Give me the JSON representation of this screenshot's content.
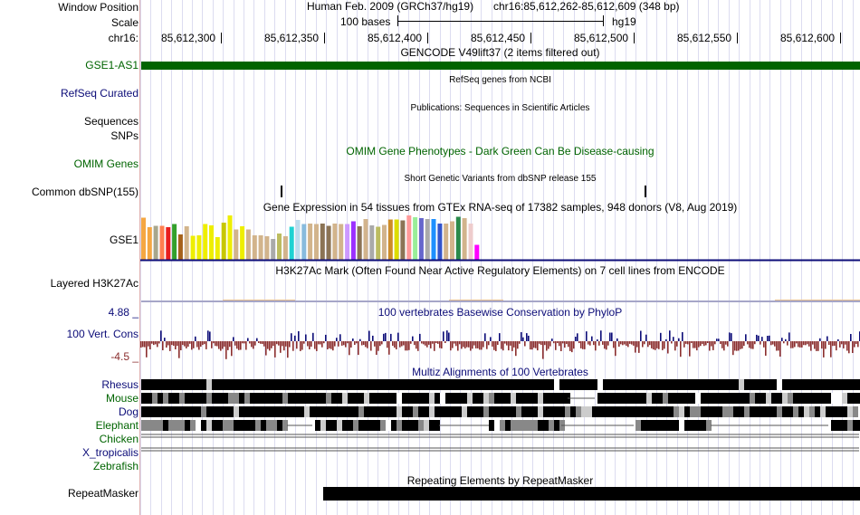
{
  "header": {
    "window_position_label": "Window Position",
    "scale_label": "Scale",
    "chrom_label": "chr16:",
    "assembly": "Human Feb. 2009 (GRCh37/hg19)",
    "position": "chr16:85,612,262-85,612,609 (348 bp)",
    "scale_text": "100 bases",
    "scale_db": "hg19",
    "ticks": [
      "85,612,300",
      "85,612,350",
      "85,612,400",
      "85,612,450",
      "85,612,500",
      "85,612,550",
      "85,612,600"
    ]
  },
  "tracks": {
    "gencode": {
      "title": "GENCODE V49lift37 (2 items filtered out)",
      "gene": "GSE1-AS1",
      "color": "#006400"
    },
    "refseq": {
      "label": "RefSeq Curated",
      "title": "RefSeq genes from NCBI",
      "color": "#0c0c78"
    },
    "publications": {
      "label": "Sequences",
      "title": "Publications: Sequences in Scientific Articles"
    },
    "snps": {
      "label": "SNPs"
    },
    "omim": {
      "label": "OMIM Genes",
      "title": "OMIM Gene Phenotypes - Dark Green Can Be Disease-causing",
      "color": "#006400"
    },
    "dbsnp": {
      "label": "Common dbSNP(155)",
      "title": "Short Genetic Variants from dbSNP release 155"
    },
    "gtex": {
      "label": "GSE1",
      "title": "Gene Expression in 54 tissues from GTEx RNA-seq of 17382 samples, 948 donors (V8, Aug 2019)",
      "values": [
        0.93,
        0.72,
        0.75,
        0.75,
        0.72,
        0.79,
        0.56,
        0.74,
        0.53,
        0.54,
        0.79,
        0.76,
        0.5,
        0.82,
        0.98,
        0.67,
        0.74,
        0.67,
        0.54,
        0.54,
        0.52,
        0.46,
        0.58,
        0.52,
        0.73,
        0.88,
        0.79,
        0.8,
        0.79,
        0.8,
        0.75,
        0.8,
        0.79,
        0.79,
        0.85,
        0.74,
        0.9,
        0.76,
        0.73,
        0.77,
        0.89,
        0.89,
        0.87,
        0.98,
        0.94,
        0.92,
        0.9,
        0.9,
        0.8,
        0.8,
        0.85,
        0.95,
        0.92,
        0.8,
        0.33
      ],
      "colors": [
        "#f5a742",
        "#f5a742",
        "#a8a68c",
        "#ff7f50",
        "#e81e1e",
        "#33a02c",
        "#a6611a",
        "#d2b48c",
        "#eeee00",
        "#eeee00",
        "#eeee00",
        "#eeee00",
        "#eeee00",
        "#c7c700",
        "#eeee00",
        "#d2b48c",
        "#eeee00",
        "#d2b48c",
        "#d2b48c",
        "#d2b48c",
        "#d2b48c",
        "#aaaaaa",
        "#bcbc60",
        "#d2b48c",
        "#1ed2d2",
        "#bbddee",
        "#88bbdd",
        "#d2b48c",
        "#d2b48c",
        "#8b7355",
        "#8b7355",
        "#d2b48c",
        "#d2b48c",
        "#cc99ff",
        "#9b30ff",
        "#8b7355",
        "#d2b48c",
        "#aaaaaa",
        "#bcbc60",
        "#d2b48c",
        "#cd8c28",
        "#dddd00",
        "#8b7355",
        "#ff9999",
        "#99ee99",
        "#6666cc",
        "#aaaaaa",
        "#1e90ff",
        "#3355cc",
        "#d2b48c",
        "#d2b48c",
        "#2a8a4a",
        "#d2b48c",
        "#eecccc",
        "#ff00ff"
      ]
    },
    "h3k27ac": {
      "label": "Layered H3K27Ac",
      "title": "H3K27Ac Mark (Often Found Near Active Regulatory Elements) on 7 cell lines from ENCODE"
    },
    "phylop": {
      "label": "100 Vert. Cons",
      "title": "100 vertebrates Basewise Conservation by PhyloP",
      "max": "4.88 _",
      "min": "-4.5 _",
      "pos_color": "#0c0c78",
      "neg_color": "#8b2e2e"
    },
    "multiz": {
      "title": "Multiz Alignments of 100 Vertebrates",
      "species": [
        {
          "name": "Rhesus",
          "color": "#0c0c78"
        },
        {
          "name": "Mouse",
          "color": "#006400"
        },
        {
          "name": "Dog",
          "color": "#0c0c78"
        },
        {
          "name": "Elephant",
          "color": "#006400"
        },
        {
          "name": "Chicken",
          "color": "#006400"
        },
        {
          "name": "X_tropicalis",
          "color": "#0c0c78"
        },
        {
          "name": "Zebrafish",
          "color": "#006400"
        }
      ]
    },
    "repeatmasker": {
      "label": "RepeatMasker",
      "title": "Repeating Elements by RepeatMasker"
    }
  }
}
